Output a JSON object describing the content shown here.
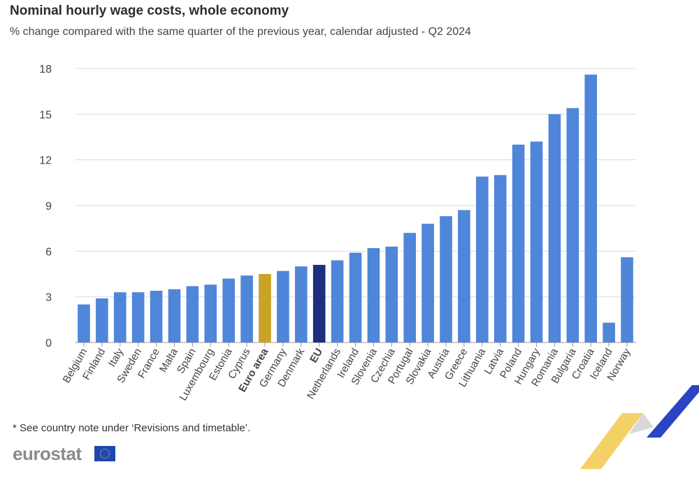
{
  "chart_data": {
    "type": "bar",
    "title": "Nominal hourly wage costs, whole economy",
    "subtitle": "% change compared with the same quarter of the previous year, calendar adjusted - Q2 2024",
    "categories": [
      "Belgium",
      "Finland",
      "Italy",
      "Sweden",
      "France",
      "Malta",
      "Spain",
      "Luxembourg",
      "Estonia",
      "Cyprus",
      "Euro area",
      "Germany",
      "Denmark",
      "EU",
      "Netherlands",
      "Ireland",
      "Slovenia",
      "Czechia",
      "Portugal",
      "Slovakia",
      "Austria",
      "Greece",
      "Lithuania",
      "Latvia",
      "Poland",
      "Hungary",
      "Romania",
      "Bulgaria",
      "Croatia",
      "Iceland",
      "Norway"
    ],
    "values": [
      2.5,
      2.9,
      3.3,
      3.3,
      3.4,
      3.5,
      3.7,
      3.8,
      4.2,
      4.4,
      4.5,
      4.7,
      5.0,
      5.1,
      5.4,
      5.9,
      6.2,
      6.3,
      7.2,
      7.8,
      8.3,
      8.7,
      10.9,
      11.0,
      13.0,
      13.2,
      15.0,
      15.4,
      17.6,
      1.3,
      5.6
    ],
    "highlight": {
      "Euro area": "#c9a227",
      "EU": "#1b2f7a"
    },
    "bold_categories": [
      "Euro area",
      "EU"
    ],
    "bar_color": "#4f86d9",
    "yticks": [
      0,
      3,
      6,
      9,
      12,
      15,
      18
    ],
    "ylim": [
      0,
      18
    ],
    "xlabel": "",
    "ylabel": "",
    "grid": true
  },
  "footnote": "* See country note under ‘Revisions and timetable’.",
  "logo": "eurostat",
  "flag_icon": "eu-flag-icon"
}
